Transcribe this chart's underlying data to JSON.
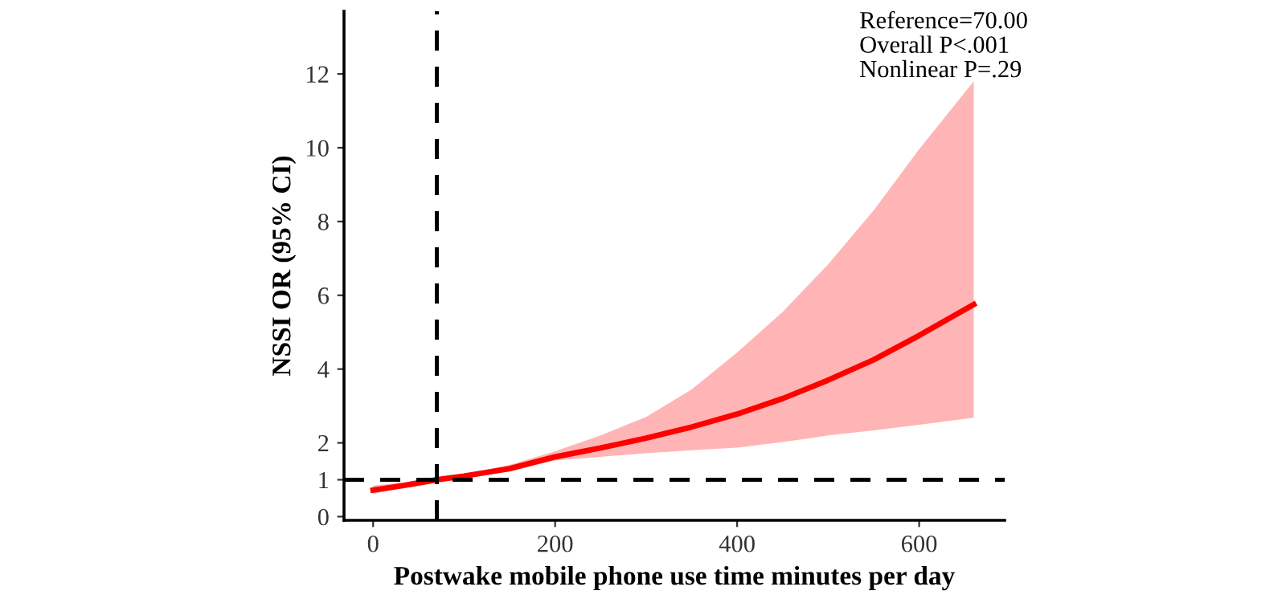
{
  "chart_data": {
    "type": "line",
    "xlabel": "Postwake mobile phone use time minutes per day",
    "ylabel": "NSSI OR (95% CI)",
    "annotations": [
      "Reference=70.00",
      "Overall P<.001",
      "Nonlinear P=.29"
    ],
    "series": [
      {
        "color": "#ff0000",
        "x": [
          0,
          35,
          70,
          100,
          150,
          200,
          250,
          300,
          350,
          400,
          450,
          500,
          550,
          600,
          660
        ],
        "values": [
          0.72,
          0.85,
          1.0,
          1.1,
          1.3,
          1.62,
          1.86,
          2.13,
          2.43,
          2.78,
          3.2,
          3.7,
          4.25,
          4.91,
          5.75
        ],
        "lower": [
          0.62,
          0.78,
          1.0,
          1.06,
          1.22,
          1.52,
          1.62,
          1.72,
          1.8,
          1.87,
          2.02,
          2.2,
          2.34,
          2.49,
          2.68
        ],
        "upper": [
          0.84,
          0.93,
          1.0,
          1.14,
          1.4,
          1.77,
          2.2,
          2.7,
          3.45,
          4.45,
          5.55,
          6.84,
          8.3,
          9.96,
          11.8
        ]
      }
    ],
    "xlim": [
      -32,
      694
    ],
    "ylim": [
      -0.1,
      13.7
    ],
    "xticks": [
      0,
      200,
      400,
      600
    ],
    "yticks": [
      0,
      1,
      2,
      4,
      6,
      8,
      10,
      12
    ],
    "ref_lines": [
      {
        "axis": "x",
        "value": 70,
        "color": "#000000",
        "line_style": "dashed"
      },
      {
        "axis": "y",
        "value": 1,
        "color": "#000000",
        "line_style": "dashed"
      }
    ],
    "grid": false,
    "legend": false
  }
}
